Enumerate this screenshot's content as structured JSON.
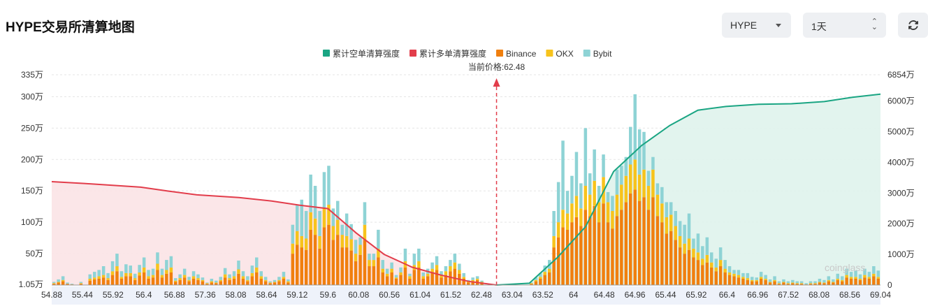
{
  "header": {
    "title": "HYPE交易所清算地图",
    "coin_select": "HYPE",
    "period_select": "1天"
  },
  "icons": {
    "refresh": "refresh-icon",
    "coin_caret": "chevron-down-icon",
    "period_caret": "up-down-icon"
  },
  "watermark": "coinglass",
  "chart_data": {
    "type": "bar",
    "current_price_label": "当前价格:62.48",
    "current_price": 62.48,
    "legend": [
      {
        "name": "累计空单清算强度",
        "color": "#1aa583"
      },
      {
        "name": "累计多单清算强度",
        "color": "#e23d4b"
      },
      {
        "name": "Binance",
        "color": "#f07f0e"
      },
      {
        "name": "OKX",
        "color": "#f7c31c"
      },
      {
        "name": "Bybit",
        "color": "#8ed3d5"
      }
    ],
    "x_ticks": [
      "54.88",
      "55.44",
      "55.92",
      "56.4",
      "56.88",
      "57.36",
      "58.08",
      "58.64",
      "59.12",
      "59.6",
      "60.08",
      "60.56",
      "61.04",
      "61.52",
      "62.48",
      "63.04",
      "63.52",
      "64",
      "64.48",
      "64.96",
      "65.44",
      "65.92",
      "66.4",
      "66.96",
      "67.52",
      "68.08",
      "68.56",
      "69.04"
    ],
    "y_left_ticks": [
      "1.05万",
      "50万",
      "100万",
      "150万",
      "200万",
      "250万",
      "300万",
      "335万"
    ],
    "y_left_values": [
      1.05,
      50,
      100,
      150,
      200,
      250,
      300,
      335
    ],
    "y_right_ticks": [
      "0",
      "1000万",
      "2000万",
      "3000万",
      "4000万",
      "5000万",
      "6000万",
      "6854万"
    ],
    "y_right_values": [
      0,
      1000,
      2000,
      3000,
      4000,
      5000,
      6000,
      6854
    ],
    "ylim_left": [
      0,
      335
    ],
    "ylim_right": [
      0,
      6854
    ],
    "x_range": [
      54.88,
      69.04
    ],
    "series": [
      {
        "name": "Binance",
        "values": [
          2,
          4,
          6,
          2,
          1,
          0,
          2,
          0,
          7,
          9,
          10,
          12,
          8,
          16,
          22,
          10,
          14,
          14,
          8,
          15,
          20,
          10,
          12,
          24,
          12,
          18,
          20,
          5,
          8,
          12,
          6,
          10,
          8,
          6,
          2,
          4,
          3,
          6,
          12,
          8,
          10,
          18,
          10,
          6,
          14,
          20,
          10,
          6,
          3,
          4,
          6,
          10,
          4,
          50,
          64,
          60,
          56,
          88,
          80,
          58,
          92,
          96,
          72,
          80,
          60,
          60,
          55,
          38,
          48,
          72,
          30,
          30,
          44,
          20,
          14,
          20,
          10,
          16,
          28,
          10,
          24,
          28,
          10,
          14,
          20,
          24,
          12,
          16,
          22,
          26,
          18,
          10,
          4,
          6,
          8,
          4,
          0,
          0,
          0,
          0,
          0,
          0,
          0,
          0,
          0,
          0,
          2,
          6,
          10,
          16,
          20,
          60,
          76,
          92,
          88,
          100,
          108,
          94,
          120,
          110,
          126,
          100,
          130,
          100,
          90,
          110,
          120,
          132,
          146,
          152,
          134,
          140,
          120,
          140,
          110,
          100,
          82,
          86,
          72,
          60,
          50,
          56,
          44,
          40,
          32,
          36,
          28,
          22,
          30,
          20,
          16,
          14,
          12,
          10,
          8,
          6,
          6,
          10,
          8,
          4,
          6,
          2,
          4,
          2,
          3,
          2,
          2,
          1,
          2,
          2,
          4,
          3,
          6,
          4,
          8,
          6,
          12,
          10,
          10,
          8,
          12,
          10,
          14,
          10
        ]
      },
      {
        "name": "OKX",
        "values": [
          1,
          1,
          2,
          0,
          0,
          0,
          1,
          0,
          3,
          3,
          4,
          4,
          3,
          6,
          8,
          3,
          5,
          5,
          3,
          5,
          8,
          4,
          4,
          10,
          4,
          6,
          8,
          2,
          3,
          4,
          2,
          4,
          3,
          2,
          1,
          2,
          1,
          2,
          5,
          3,
          4,
          7,
          4,
          2,
          5,
          8,
          4,
          2,
          1,
          1,
          2,
          3,
          2,
          16,
          22,
          18,
          18,
          28,
          26,
          20,
          30,
          32,
          22,
          24,
          20,
          18,
          18,
          12,
          16,
          24,
          10,
          10,
          14,
          6,
          4,
          6,
          2,
          4,
          10,
          4,
          8,
          10,
          4,
          4,
          6,
          8,
          4,
          6,
          8,
          10,
          6,
          3,
          2,
          2,
          2,
          1,
          0,
          0,
          0,
          0,
          0,
          0,
          0,
          0,
          0,
          0,
          1,
          2,
          3,
          5,
          6,
          18,
          24,
          28,
          26,
          30,
          34,
          28,
          38,
          34,
          40,
          32,
          42,
          32,
          28,
          34,
          40,
          42,
          46,
          48,
          42,
          44,
          38,
          44,
          34,
          30,
          26,
          26,
          22,
          18,
          16,
          18,
          14,
          12,
          10,
          12,
          8,
          6,
          10,
          6,
          4,
          4,
          4,
          3,
          3,
          2,
          2,
          3,
          2,
          1,
          2,
          1,
          1,
          1,
          1,
          1,
          1,
          0,
          1,
          1,
          1,
          1,
          2,
          1,
          2,
          2,
          4,
          3,
          3,
          2,
          4,
          3,
          4,
          3
        ]
      },
      {
        "name": "Bybit",
        "values": [
          2,
          4,
          6,
          2,
          1,
          0,
          2,
          0,
          7,
          9,
          10,
          14,
          8,
          16,
          20,
          9,
          14,
          12,
          7,
          12,
          16,
          10,
          10,
          18,
          10,
          16,
          18,
          4,
          6,
          10,
          5,
          8,
          6,
          4,
          1,
          4,
          3,
          5,
          10,
          6,
          8,
          14,
          8,
          6,
          12,
          16,
          8,
          5,
          2,
          3,
          5,
          8,
          3,
          30,
          42,
          58,
          44,
          60,
          52,
          40,
          58,
          62,
          28,
          30,
          16,
          36,
          24,
          22,
          12,
          36,
          10,
          10,
          30,
          14,
          8,
          10,
          4,
          8,
          20,
          4,
          18,
          20,
          6,
          8,
          10,
          14,
          6,
          8,
          10,
          14,
          10,
          6,
          2,
          4,
          4,
          2,
          0,
          0,
          0,
          0,
          0,
          0,
          0,
          0,
          0,
          0,
          1,
          4,
          6,
          10,
          14,
          40,
          64,
          110,
          36,
          44,
          70,
          40,
          92,
          34,
          50,
          26,
          36,
          16,
          24,
          40,
          30,
          30,
          60,
          104,
          72,
          60,
          24,
          20,
          18,
          26,
          24,
          20,
          24,
          24,
          30,
          40,
          16,
          30,
          20,
          28,
          16,
          14,
          20,
          14,
          10,
          6,
          8,
          6,
          8,
          5,
          4,
          8,
          6,
          4,
          6,
          3,
          4,
          3,
          4,
          3,
          3,
          2,
          3,
          3,
          5,
          4,
          6,
          4,
          8,
          6,
          10,
          8,
          10,
          7,
          10,
          8,
          12,
          10
        ]
      }
    ],
    "cumulative_long_curve": [
      [
        54.88,
        3370
      ],
      [
        55.44,
        3310
      ],
      [
        56.4,
        3190
      ],
      [
        56.88,
        3060
      ],
      [
        57.36,
        2940
      ],
      [
        58.08,
        2850
      ],
      [
        58.64,
        2740
      ],
      [
        59.12,
        2600
      ],
      [
        59.6,
        2490
      ],
      [
        60.08,
        1700
      ],
      [
        60.56,
        1000
      ],
      [
        61.04,
        580
      ],
      [
        61.52,
        330
      ],
      [
        62.0,
        120
      ],
      [
        62.48,
        0
      ]
    ],
    "cumulative_short_curve": [
      [
        62.48,
        0
      ],
      [
        63.04,
        60
      ],
      [
        63.52,
        900
      ],
      [
        64.0,
        1900
      ],
      [
        64.48,
        3700
      ],
      [
        64.96,
        4550
      ],
      [
        65.44,
        5200
      ],
      [
        65.92,
        5700
      ],
      [
        66.4,
        5820
      ],
      [
        66.96,
        5890
      ],
      [
        67.52,
        5910
      ],
      [
        68.08,
        5980
      ],
      [
        68.56,
        6120
      ],
      [
        69.04,
        6220
      ]
    ]
  }
}
